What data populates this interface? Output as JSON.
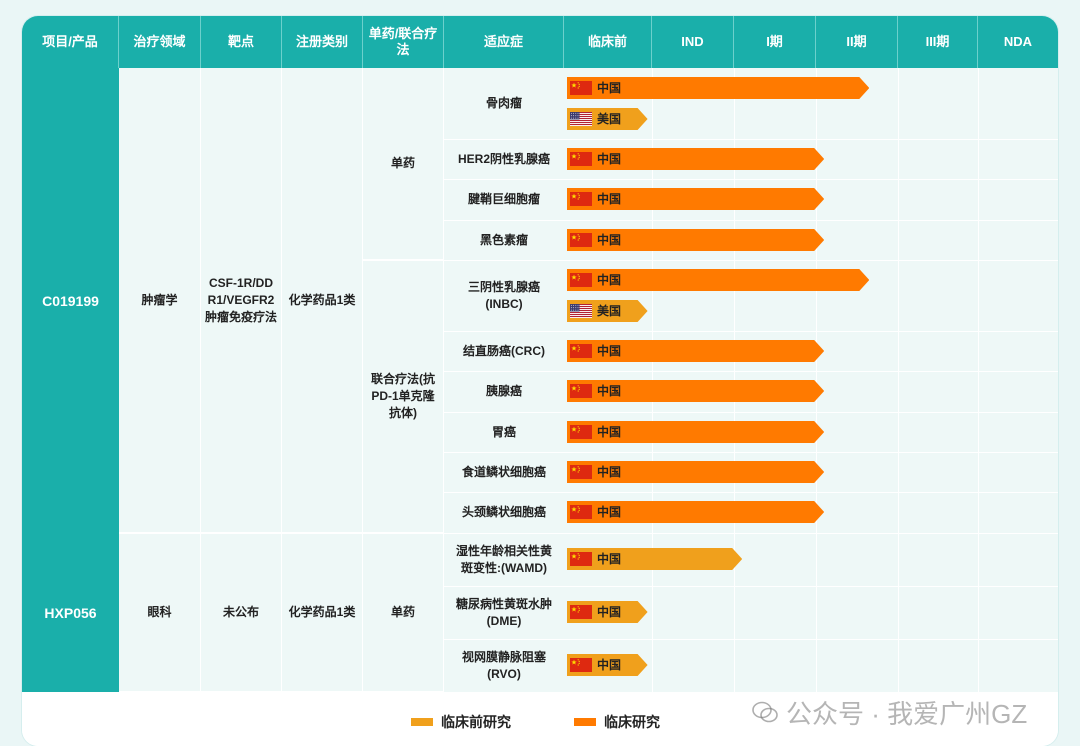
{
  "colors": {
    "header_bg": "#1aafaa",
    "body_bg": "#eef8f7",
    "preclinical_bar": "#f0a01c",
    "clinical_bar": "#ff7a00",
    "flag_cn": "#de2910",
    "flag_us": "#b22234"
  },
  "headers": [
    "项目/产品",
    "治疗领域",
    "靶点",
    "注册类别",
    "单药/联合疗法",
    "适应症",
    "临床前",
    "IND",
    "I期",
    "II期",
    "III期",
    "NDA"
  ],
  "products": [
    {
      "name": "C019199",
      "area": "肿瘤学",
      "target": "CSF-1R/DDR1/VEGFR2肿瘤免疫疗法",
      "reg_class": "化学药品1类"
    },
    {
      "name": "HXP056",
      "area": "眼科",
      "target": "未公布",
      "reg_class": "化学药品1类"
    }
  ],
  "therapies": [
    "单药",
    "联合疗法(抗PD-1单克隆抗体)",
    "单药"
  ],
  "indications": [
    "骨肉瘤",
    "HER2阴性乳腺癌",
    "腱鞘巨细胞瘤",
    "黑色素瘤",
    "三阴性乳腺癌(INBC)",
    "结直肠癌(CRC)",
    "胰腺癌",
    "胃癌",
    "食道鳞状细胞癌",
    "头颈鳞状细胞癌",
    "湿性年龄相关性黄斑变性:(WAMD)",
    "糖尿病性黄斑水肿(DME)",
    "视网膜静脉阻塞(RVO)"
  ],
  "countries": {
    "cn": "中国",
    "us": "美国"
  },
  "legend": {
    "preclinical": "临床前研究",
    "clinical": "临床研究"
  },
  "watermark": "公众号 · 我爱广州GZ",
  "chart_data": {
    "type": "bar",
    "stages": [
      "临床前",
      "IND",
      "I期",
      "II期",
      "III期",
      "NDA"
    ],
    "value_meaning": "stage reached, fractional (0 = start of 临床前 column, 6 = end of NDA column)",
    "bars": [
      {
        "product": "C019199",
        "indication": "骨肉瘤",
        "country": "中国",
        "phase": "clinical",
        "value": 3.65
      },
      {
        "product": "C019199",
        "indication": "骨肉瘤",
        "country": "美国",
        "phase": "preclinical",
        "value": 0.95
      },
      {
        "product": "C019199",
        "indication": "HER2阴性乳腺癌",
        "country": "中国",
        "phase": "clinical",
        "value": 3.1
      },
      {
        "product": "C019199",
        "indication": "腱鞘巨细胞瘤",
        "country": "中国",
        "phase": "clinical",
        "value": 3.1
      },
      {
        "product": "C019199",
        "indication": "黑色素瘤",
        "country": "中国",
        "phase": "clinical",
        "value": 3.1
      },
      {
        "product": "C019199",
        "indication": "三阴性乳腺癌(INBC)",
        "country": "中国",
        "phase": "clinical",
        "value": 3.65
      },
      {
        "product": "C019199",
        "indication": "三阴性乳腺癌(INBC)",
        "country": "美国",
        "phase": "preclinical",
        "value": 0.95
      },
      {
        "product": "C019199",
        "indication": "结直肠癌(CRC)",
        "country": "中国",
        "phase": "clinical",
        "value": 3.1
      },
      {
        "product": "C019199",
        "indication": "胰腺癌",
        "country": "中国",
        "phase": "clinical",
        "value": 3.1
      },
      {
        "product": "C019199",
        "indication": "胃癌",
        "country": "中国",
        "phase": "clinical",
        "value": 3.1
      },
      {
        "product": "C019199",
        "indication": "食道鳞状细胞癌",
        "country": "中国",
        "phase": "clinical",
        "value": 3.1
      },
      {
        "product": "C019199",
        "indication": "头颈鳞状细胞癌",
        "country": "中国",
        "phase": "clinical",
        "value": 3.1
      },
      {
        "product": "HXP056",
        "indication": "湿性年龄相关性黄斑变性:(WAMD)",
        "country": "中国",
        "phase": "preclinical",
        "value": 2.1
      },
      {
        "product": "HXP056",
        "indication": "糖尿病性黄斑水肿(DME)",
        "country": "中国",
        "phase": "preclinical",
        "value": 0.95
      },
      {
        "product": "HXP056",
        "indication": "视网膜静脉阻塞(RVO)",
        "country": "中国",
        "phase": "preclinical",
        "value": 0.95
      }
    ]
  }
}
